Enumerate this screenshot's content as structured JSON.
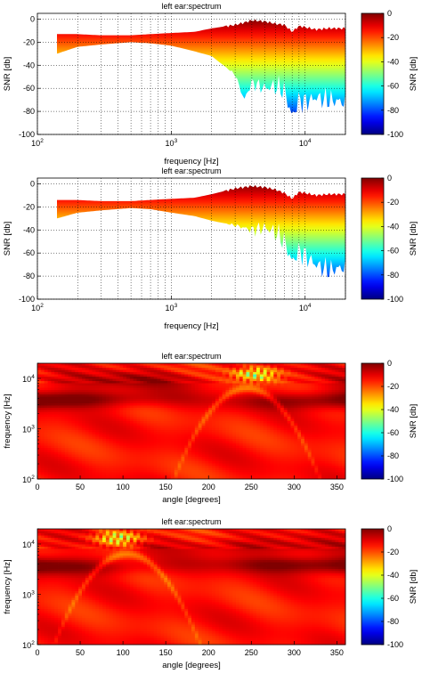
{
  "chart_data": [
    {
      "type": "area",
      "title": "left ear:spectrum",
      "xlabel": "frequency [Hz]",
      "ylabel": "SNR [db]",
      "xscale": "log",
      "xlim": [
        100,
        20000
      ],
      "ylim": [
        -100,
        5
      ],
      "x_ticks": [
        100,
        1000,
        10000
      ],
      "x_tick_labels": [
        {
          "base": "10",
          "exp": "2"
        },
        {
          "base": "10",
          "exp": "3"
        },
        {
          "base": "10",
          "exp": "4"
        }
      ],
      "y_ticks": [
        0,
        -20,
        -40,
        -60,
        -80,
        -100
      ],
      "y_tick_labels": [
        "0",
        "-20",
        "-40",
        "-60",
        "-80",
        "-100"
      ],
      "grid": "dotted",
      "envelope": {
        "x": [
          140,
          200,
          300,
          500,
          700,
          1000,
          1500,
          2000,
          3000,
          3500,
          4000,
          5000,
          6000,
          7000,
          8000,
          9000,
          10000,
          12000,
          15000,
          20000
        ],
        "upper": [
          -13,
          -13,
          -14,
          -14,
          -13,
          -12,
          -11,
          -8,
          -5,
          -3,
          -1,
          -2,
          -4,
          -5,
          -11,
          -6,
          -7,
          -9,
          -8,
          -8
        ],
        "lower": [
          -30,
          -24,
          -22,
          -20,
          -21,
          -23,
          -28,
          -32,
          -48,
          -70,
          -55,
          -60,
          -58,
          -62,
          -85,
          -70,
          -72,
          -68,
          -70,
          -72
        ]
      },
      "colorbar": {
        "label": "SNR [db]",
        "ticks": [
          0,
          -20,
          -40,
          -60,
          -80,
          -100
        ],
        "tick_labels": [
          "0",
          "-20",
          "-40",
          "-60",
          "-80",
          "-100"
        ],
        "range": [
          -100,
          0
        ]
      }
    },
    {
      "type": "area",
      "title": "left ear:spectrum",
      "xlabel": "frequency [Hz]",
      "ylabel": "SNR [db]",
      "xscale": "log",
      "xlim": [
        100,
        20000
      ],
      "ylim": [
        -100,
        5
      ],
      "x_ticks": [
        100,
        1000,
        10000
      ],
      "x_tick_labels": [
        {
          "base": "10",
          "exp": "2"
        },
        {
          "base": "10",
          "exp": "3"
        },
        {
          "base": "10",
          "exp": "4"
        }
      ],
      "y_ticks": [
        0,
        -20,
        -40,
        -60,
        -80,
        -100
      ],
      "y_tick_labels": [
        "0",
        "-20",
        "-40",
        "-60",
        "-80",
        "-100"
      ],
      "grid": "dotted",
      "envelope": {
        "x": [
          140,
          200,
          300,
          500,
          700,
          1000,
          1500,
          2000,
          3000,
          4000,
          5000,
          6000,
          7000,
          8000,
          9000,
          10000,
          12000,
          15000,
          20000
        ],
        "upper": [
          -14,
          -14,
          -15,
          -15,
          -14,
          -13,
          -12,
          -9,
          -4,
          -2,
          -3,
          -5,
          -8,
          -13,
          -7,
          -8,
          -10,
          -9,
          -9
        ],
        "lower": [
          -30,
          -25,
          -23,
          -21,
          -22,
          -25,
          -28,
          -32,
          -36,
          -40,
          -38,
          -42,
          -50,
          -68,
          -58,
          -62,
          -70,
          -75,
          -72
        ]
      },
      "colorbar": {
        "label": "SNR [db]",
        "ticks": [
          0,
          -20,
          -40,
          -60,
          -80,
          -100
        ],
        "tick_labels": [
          "0",
          "-20",
          "-40",
          "-60",
          "-80",
          "-100"
        ],
        "range": [
          -100,
          0
        ]
      }
    },
    {
      "type": "heatmap",
      "title": "left ear:spectrum",
      "xlabel": "angle [degrees]",
      "ylabel": "frequency [Hz]",
      "xlim": [
        0,
        360
      ],
      "ylim": [
        100,
        20000
      ],
      "yscale": "log",
      "x_ticks": [
        0,
        50,
        100,
        150,
        200,
        250,
        300,
        350
      ],
      "x_tick_labels": [
        "0",
        "50",
        "100",
        "150",
        "200",
        "250",
        "300",
        "350"
      ],
      "y_ticks": [
        100,
        1000,
        10000
      ],
      "y_tick_labels": [
        {
          "base": "10",
          "exp": "2"
        },
        {
          "base": "10",
          "exp": "3"
        },
        {
          "base": "10",
          "exp": "4"
        }
      ],
      "features": [
        {
          "kind": "notch",
          "angle": 255,
          "freq": 12000,
          "value": -55
        },
        {
          "kind": "dark-band",
          "angle": 60,
          "freq": 4000,
          "value": -2
        },
        {
          "kind": "dark-band",
          "angle": 320,
          "freq": 3500,
          "value": -3
        },
        {
          "kind": "dark-band",
          "angle": 100,
          "freq": 9000,
          "value": -5
        },
        {
          "kind": "light-arc",
          "angle": 245,
          "freq": 2000,
          "value": -25
        }
      ],
      "colorbar": {
        "label": "SNR [db]",
        "ticks": [
          0,
          -20,
          -40,
          -60,
          -80,
          -100
        ],
        "tick_labels": [
          "0",
          "-20",
          "-40",
          "-60",
          "-80",
          "-100"
        ],
        "range": [
          -100,
          0
        ]
      }
    },
    {
      "type": "heatmap",
      "title": "left ear:spectrum",
      "xlabel": "angle [degrees]",
      "ylabel": "frequency [Hz]",
      "xlim": [
        0,
        360
      ],
      "ylim": [
        100,
        20000
      ],
      "yscale": "log",
      "x_ticks": [
        0,
        50,
        100,
        150,
        200,
        250,
        300,
        350
      ],
      "x_tick_labels": [
        "0",
        "50",
        "100",
        "150",
        "200",
        "250",
        "300",
        "350"
      ],
      "y_ticks": [
        100,
        1000,
        10000
      ],
      "y_tick_labels": [
        {
          "base": "10",
          "exp": "2"
        },
        {
          "base": "10",
          "exp": "3"
        },
        {
          "base": "10",
          "exp": "4"
        }
      ],
      "features": [
        {
          "kind": "notch",
          "angle": 95,
          "freq": 13000,
          "value": -55
        },
        {
          "kind": "dark-band",
          "angle": 300,
          "freq": 4000,
          "value": -2
        },
        {
          "kind": "dark-band",
          "angle": 40,
          "freq": 3500,
          "value": -3
        },
        {
          "kind": "dark-band",
          "angle": 260,
          "freq": 9000,
          "value": -5
        },
        {
          "kind": "light-arc",
          "angle": 105,
          "freq": 2000,
          "value": -25
        }
      ],
      "colorbar": {
        "label": "SNR [db]",
        "ticks": [
          0,
          -20,
          -40,
          -60,
          -80,
          -100
        ],
        "tick_labels": [
          "0",
          "-20",
          "-40",
          "-60",
          "-80",
          "-100"
        ],
        "range": [
          -100,
          0
        ]
      }
    }
  ]
}
